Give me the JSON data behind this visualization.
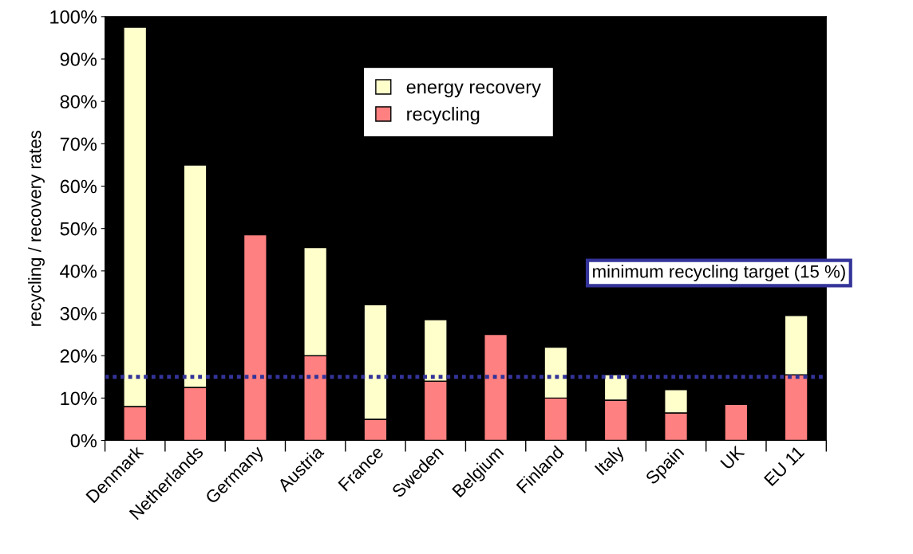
{
  "chart_data": {
    "type": "bar",
    "stacked": true,
    "ylabel": "recycling / recovery rates",
    "categories": [
      "Denmark",
      "Netherlands",
      "Germany",
      "Austria",
      "France",
      "Sweden",
      "Belgium",
      "Finland",
      "Italy",
      "Spain",
      "UK",
      "EU 11"
    ],
    "series": [
      {
        "name": "recycling",
        "color": "#ff8080",
        "values": [
          8,
          12.5,
          48.5,
          20,
          5,
          14,
          25,
          10,
          9.5,
          6.5,
          8.5,
          15.5
        ]
      },
      {
        "name": "energy recovery",
        "color": "#ffffcc",
        "values": [
          89.5,
          52.5,
          null,
          25.5,
          27,
          14.5,
          null,
          12,
          6,
          5.5,
          null,
          14
        ]
      }
    ],
    "ylim": [
      0,
      100
    ],
    "yticks": [
      {
        "value": 0,
        "label": "0%"
      },
      {
        "value": 10,
        "label": "10%"
      },
      {
        "value": 20,
        "label": "20%"
      },
      {
        "value": 30,
        "label": "30%"
      },
      {
        "value": 40,
        "label": "40%"
      },
      {
        "value": 50,
        "label": "50%"
      },
      {
        "value": 60,
        "label": "60%"
      },
      {
        "value": 70,
        "label": "70%"
      },
      {
        "value": 80,
        "label": "80%"
      },
      {
        "value": 90,
        "label": "90%"
      },
      {
        "value": 100,
        "label": "100%"
      }
    ],
    "ref_lines": [
      {
        "axis": "y",
        "value": 15,
        "color": "#333399",
        "line_style": "dotted"
      }
    ],
    "annotations": [
      "minimum recycling target (15 %)"
    ],
    "legend": "top",
    "grid": false
  }
}
